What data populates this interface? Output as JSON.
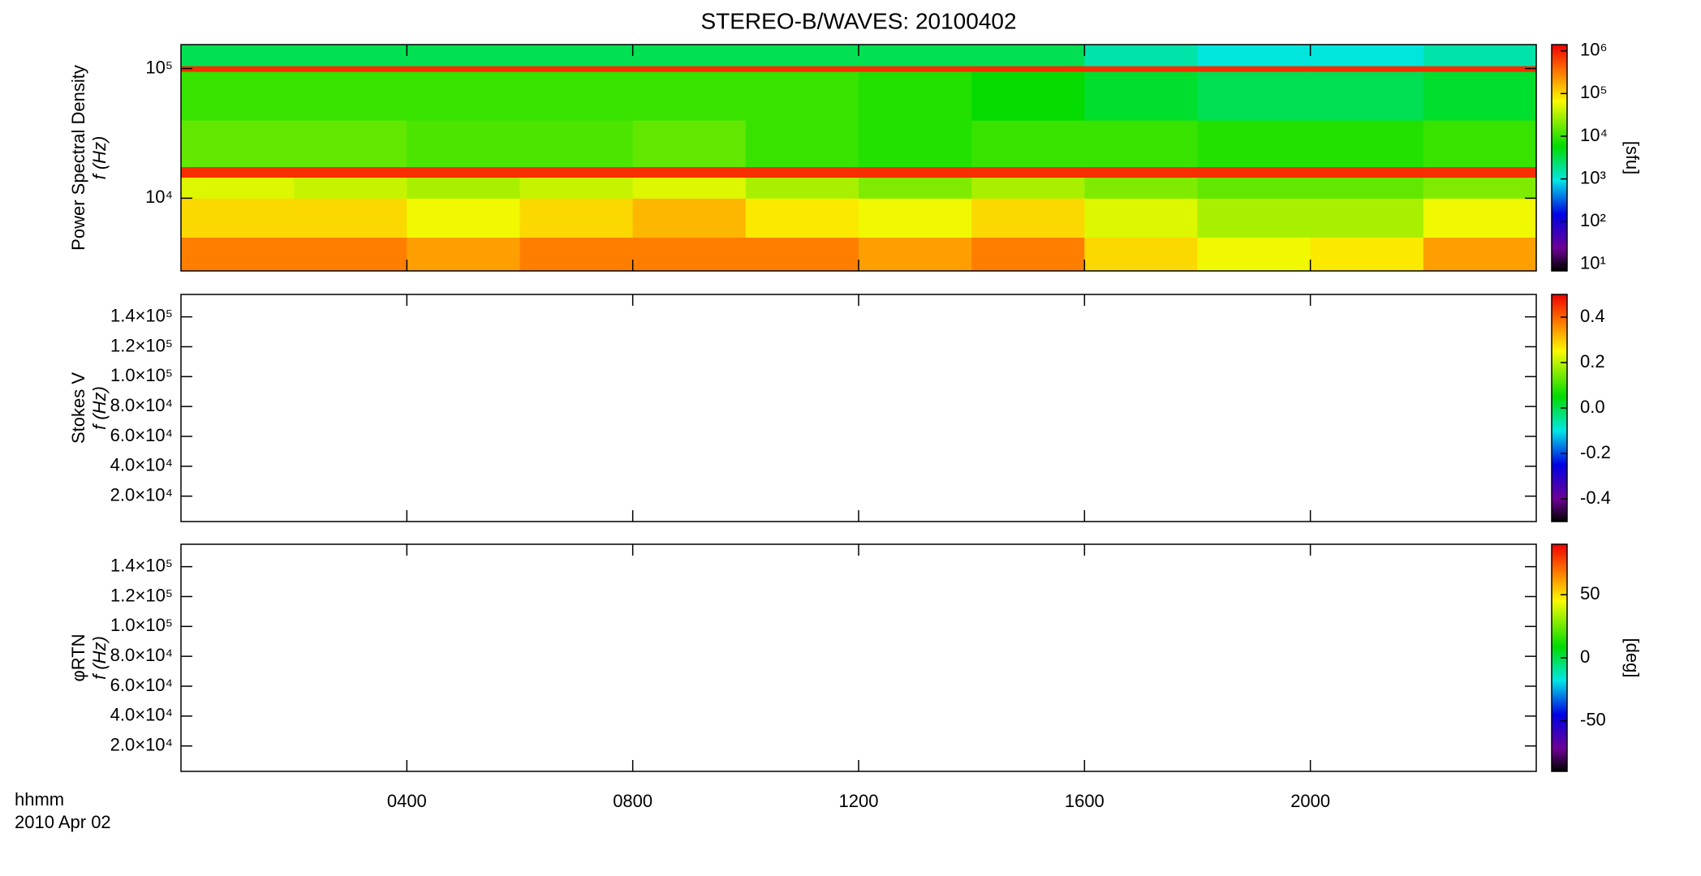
{
  "chart_data": [
    {
      "type": "heatmap",
      "title": "STEREO-B/WAVES: 20100402",
      "ylabel": [
        "Power Spectral Density",
        "f (Hz)"
      ],
      "ylog": true,
      "ylim": [
        2750,
        153000
      ],
      "yticks": [
        {
          "value": 10000,
          "label": "10⁴"
        },
        {
          "value": 100000,
          "label": "10⁵"
        }
      ],
      "xlim": [
        0,
        24
      ],
      "xbins": [
        0,
        2,
        4,
        6,
        8,
        10,
        12,
        14,
        16,
        18,
        20,
        22,
        24
      ],
      "ybins": [
        2750,
        5000,
        10000,
        14500,
        17500,
        40000,
        95000,
        105000,
        153000
      ],
      "z": [
        [
          300000,
          300000,
          200000,
          300000,
          300000,
          300000,
          200000,
          300000,
          100000,
          60000,
          80000,
          200000
        ],
        [
          100000,
          100000,
          60000,
          100000,
          150000,
          80000,
          60000,
          100000,
          50000,
          30000,
          30000,
          60000
        ],
        [
          50000,
          40000,
          30000,
          40000,
          50000,
          30000,
          20000,
          30000,
          20000,
          15000,
          15000,
          20000
        ],
        [
          800000,
          800000,
          800000,
          800000,
          800000,
          800000,
          800000,
          800000,
          800000,
          800000,
          800000,
          800000
        ],
        [
          15000,
          15000,
          12000,
          12000,
          15000,
          10000,
          8000,
          10000,
          10000,
          8000,
          8000,
          10000
        ],
        [
          10000,
          10000,
          10000,
          10000,
          10000,
          10000,
          8000,
          6000,
          4000,
          3000,
          3000,
          4000
        ],
        [
          800000,
          800000,
          800000,
          800000,
          800000,
          800000,
          800000,
          800000,
          800000,
          800000,
          800000,
          800000
        ],
        [
          3000,
          3000,
          3000,
          3000,
          3000,
          3000,
          3000,
          3000,
          1500,
          1000,
          1000,
          1500
        ]
      ],
      "colorbar": {
        "log": true,
        "lim": [
          7,
          1400000
        ],
        "label": "[sfu]",
        "ticks": [
          {
            "value": 10,
            "label": "10¹"
          },
          {
            "value": 100,
            "label": "10²"
          },
          {
            "value": 1000,
            "label": "10³"
          },
          {
            "value": 10000,
            "label": "10⁴"
          },
          {
            "value": 100000,
            "label": "10⁵"
          },
          {
            "value": 1000000,
            "label": "10⁶"
          }
        ]
      }
    },
    {
      "type": "heatmap",
      "ylabel": [
        "Stokes V",
        "f (Hz)"
      ],
      "ylog": false,
      "ylim": [
        3000,
        155000
      ],
      "yticks": [
        {
          "value": 20000,
          "label": "2.0×10⁴"
        },
        {
          "value": 40000,
          "label": "4.0×10⁴"
        },
        {
          "value": 60000,
          "label": "6.0×10⁴"
        },
        {
          "value": 80000,
          "label": "8.0×10⁴"
        },
        {
          "value": 100000,
          "label": "1.0×10⁵"
        },
        {
          "value": 120000,
          "label": "1.2×10⁵"
        },
        {
          "value": 140000,
          "label": "1.4×10⁵"
        }
      ],
      "xlim": [
        0,
        24
      ],
      "colorbar": {
        "log": false,
        "lim": [
          -0.5,
          0.5
        ],
        "ticks": [
          -0.4,
          -0.2,
          {
            "value": 0,
            "label": "0.0"
          },
          0.2,
          0.4
        ]
      }
    },
    {
      "type": "heatmap",
      "ylabel": [
        "φRTN",
        "f (Hz)"
      ],
      "ylog": false,
      "ylim": [
        3000,
        155000
      ],
      "yticks": [
        {
          "value": 20000,
          "label": "2.0×10⁴"
        },
        {
          "value": 40000,
          "label": "4.0×10⁴"
        },
        {
          "value": 60000,
          "label": "6.0×10⁴"
        },
        {
          "value": 80000,
          "label": "8.0×10⁴"
        },
        {
          "value": 100000,
          "label": "1.0×10⁵"
        },
        {
          "value": 120000,
          "label": "1.2×10⁵"
        },
        {
          "value": 140000,
          "label": "1.4×10⁵"
        }
      ],
      "xlim": [
        0,
        24
      ],
      "xticks": [
        {
          "value": 4,
          "label": "0400"
        },
        {
          "value": 8,
          "label": "0800"
        },
        {
          "value": 12,
          "label": "1200"
        },
        {
          "value": 16,
          "label": "1600"
        },
        {
          "value": 20,
          "label": "2000"
        }
      ],
      "xlabel": [
        "hhmm",
        "2010 Apr 02"
      ],
      "colorbar": {
        "log": false,
        "lim": [
          -90,
          90
        ],
        "label": "[deg]",
        "ticks": [
          -50,
          0,
          50
        ]
      }
    }
  ]
}
